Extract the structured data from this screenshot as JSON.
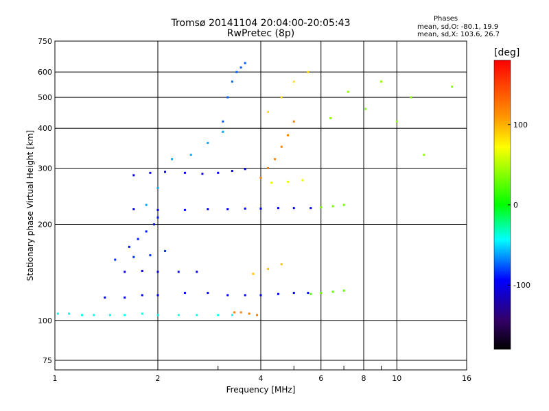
{
  "chart_data": {
    "type": "scatter",
    "title": "Tromsø 20141104 20:04:00-20:05:43",
    "subtitle": "RwPretec (8p)",
    "xlabel": "Frequency [MHz]",
    "ylabel": "Stationary phase Virtual Height [km]",
    "x_scale": "log",
    "y_scale": "log",
    "xlim": [
      1,
      16
    ],
    "ylim": [
      70,
      750
    ],
    "x_ticks": [
      1,
      2,
      4,
      6,
      8,
      10,
      16
    ],
    "y_ticks": [
      75,
      100,
      200,
      300,
      400,
      500,
      600,
      750
    ],
    "grid": true,
    "phase_box": {
      "heading": "Phases",
      "line_o": "mean, sd,O: -80.1, 19.9",
      "line_x": "mean, sd,X: 103.6, 26.7"
    },
    "colorbar": {
      "label": "[deg]",
      "ticks": [
        100,
        0,
        -100
      ],
      "range": [
        -180,
        180
      ]
    },
    "series": [
      {
        "x": [
          1.02,
          1.1,
          1.2,
          1.3,
          1.45,
          1.6,
          1.8,
          2.0,
          2.3,
          2.6,
          3.0,
          3.3
        ],
        "y": [
          105,
          105,
          104,
          104,
          104,
          104,
          105,
          104,
          104,
          104,
          104,
          104
        ],
        "phase": -40
      },
      {
        "x": [
          3.35,
          3.5,
          3.7,
          3.9
        ],
        "y": [
          106,
          106,
          105,
          104
        ],
        "phase": 150
      },
      {
        "x": [
          1.4,
          1.6,
          1.8,
          2.0,
          2.4,
          2.8,
          3.2,
          3.6,
          4.0,
          4.5,
          5.0,
          5.5
        ],
        "y": [
          118,
          118,
          120,
          120,
          122,
          122,
          120,
          120,
          120,
          121,
          122,
          122
        ],
        "phase": -95
      },
      {
        "x": [
          5.6,
          6.0,
          6.5,
          7.0
        ],
        "y": [
          121,
          122,
          123,
          124
        ],
        "phase": 40
      },
      {
        "x": [
          1.6,
          1.8,
          2.0,
          2.3,
          2.6
        ],
        "y": [
          142,
          143,
          142,
          142,
          142
        ],
        "phase": -100
      },
      {
        "x": [
          1.5,
          1.7,
          1.9,
          2.1
        ],
        "y": [
          155,
          158,
          160,
          165
        ],
        "phase": -85
      },
      {
        "x": [
          1.65,
          1.75,
          1.85,
          1.95,
          2.0
        ],
        "y": [
          170,
          180,
          190,
          200,
          210
        ],
        "phase": -90
      },
      {
        "x": [
          1.7,
          2.0,
          2.4,
          2.8,
          3.2,
          3.6,
          4.0,
          4.5,
          5.0,
          5.6
        ],
        "y": [
          223,
          222,
          222,
          223,
          223,
          224,
          224,
          225,
          225,
          225
        ],
        "phase": -95
      },
      {
        "x": [
          6.0,
          6.5,
          7.0
        ],
        "y": [
          226,
          228,
          230
        ],
        "phase": 50
      },
      {
        "x": [
          1.7,
          1.9,
          2.1,
          2.4,
          2.7,
          3.0,
          3.3,
          3.6
        ],
        "y": [
          285,
          290,
          292,
          290,
          288,
          290,
          294,
          298
        ],
        "phase": -100
      },
      {
        "x": [
          1.85,
          2.0,
          2.2,
          2.5,
          2.8,
          3.1
        ],
        "y": [
          230,
          260,
          320,
          330,
          360,
          390
        ],
        "phase": -60
      },
      {
        "x": [
          3.1,
          3.2,
          3.3,
          3.4,
          3.5,
          3.6
        ],
        "y": [
          420,
          500,
          560,
          600,
          620,
          640
        ],
        "phase": -75
      },
      {
        "x": [
          4.0,
          4.2,
          4.4,
          4.6,
          4.8,
          5.0
        ],
        "y": [
          280,
          300,
          320,
          350,
          380,
          420
        ],
        "phase": 150
      },
      {
        "x": [
          4.2,
          4.6,
          5.0,
          5.5
        ],
        "y": [
          450,
          500,
          560,
          600
        ],
        "phase": 120
      },
      {
        "x": [
          4.3,
          4.8,
          5.3
        ],
        "y": [
          270,
          272,
          275
        ],
        "phase": 100
      },
      {
        "x": [
          3.8,
          4.2,
          4.6
        ],
        "y": [
          140,
          145,
          150
        ],
        "phase": 130
      },
      {
        "x": [
          6.4,
          7.2,
          8.1,
          9.0,
          10.0,
          11.0,
          12.0,
          14.5
        ],
        "y": [
          430,
          520,
          460,
          560,
          420,
          500,
          330,
          540
        ],
        "phase": 60
      }
    ]
  }
}
